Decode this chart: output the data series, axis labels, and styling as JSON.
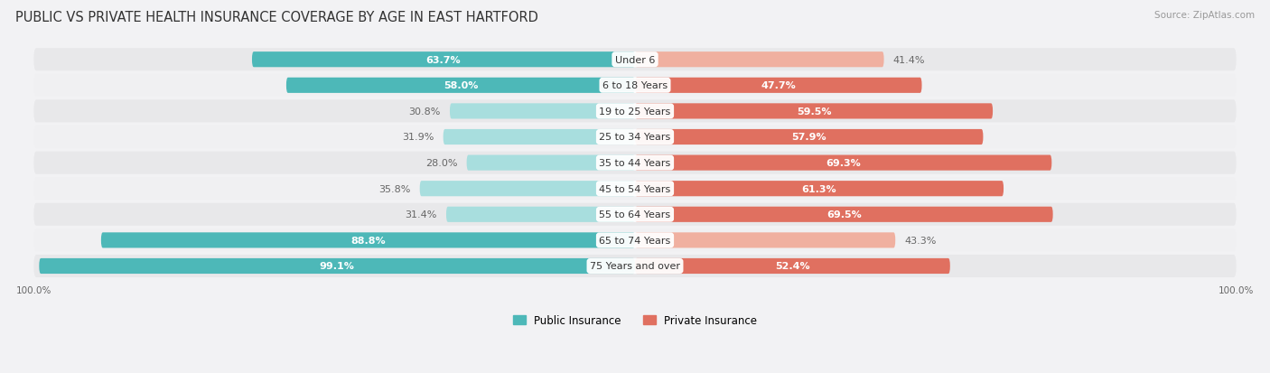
{
  "title": "PUBLIC VS PRIVATE HEALTH INSURANCE COVERAGE BY AGE IN EAST HARTFORD",
  "source": "Source: ZipAtlas.com",
  "categories": [
    "Under 6",
    "6 to 18 Years",
    "19 to 25 Years",
    "25 to 34 Years",
    "35 to 44 Years",
    "45 to 54 Years",
    "55 to 64 Years",
    "65 to 74 Years",
    "75 Years and over"
  ],
  "public_values": [
    63.7,
    58.0,
    30.8,
    31.9,
    28.0,
    35.8,
    31.4,
    88.8,
    99.1
  ],
  "private_values": [
    41.4,
    47.7,
    59.5,
    57.9,
    69.3,
    61.3,
    69.5,
    43.3,
    52.4
  ],
  "public_color_dark": "#4db8b8",
  "public_color_light": "#a8dede",
  "private_color_dark": "#e07060",
  "private_color_light": "#f0b0a0",
  "row_bg_odd": "#e8e8ea",
  "row_bg_even": "#f0f0f2",
  "label_color_white": "#ffffff",
  "label_color_dark": "#666666",
  "axis_label_left": "100.0%",
  "axis_label_right": "100.0%",
  "legend_public": "Public Insurance",
  "legend_private": "Private Insurance",
  "title_fontsize": 10.5,
  "source_fontsize": 7.5,
  "bar_label_fontsize": 8,
  "category_fontsize": 8,
  "legend_fontsize": 8.5,
  "axis_fontsize": 7.5,
  "pub_inside_threshold": 45,
  "priv_inside_threshold": 45
}
